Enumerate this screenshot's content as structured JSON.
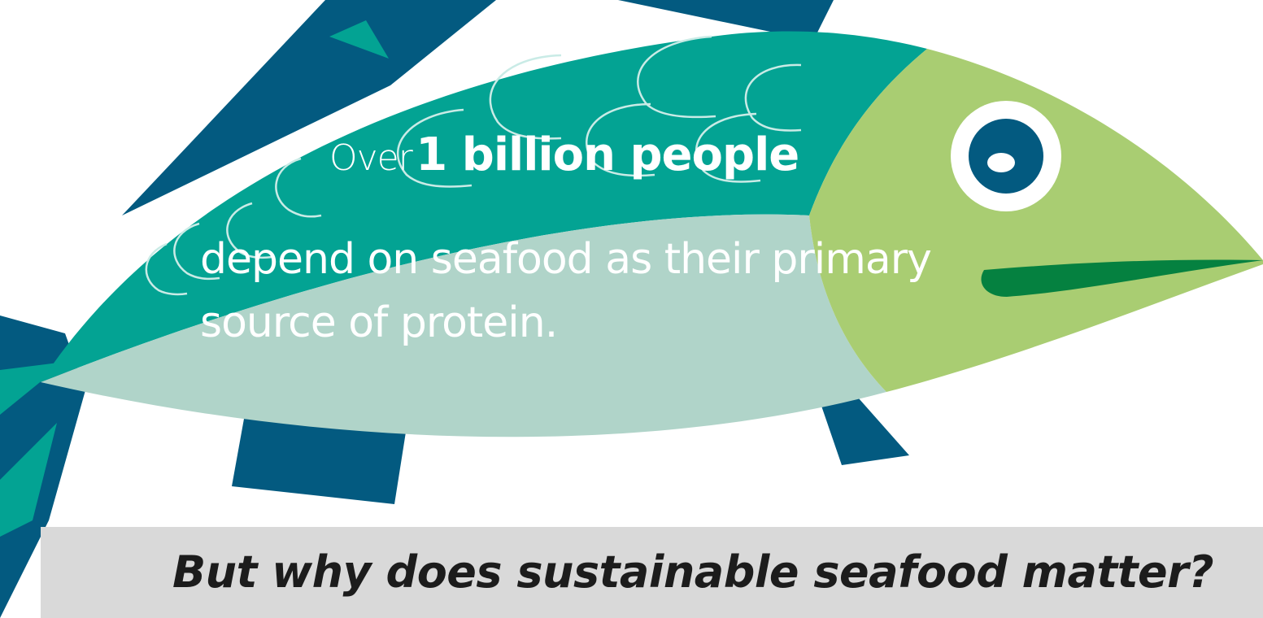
{
  "stat": {
    "prefix": "Over",
    "highlight": "1 billion people",
    "body": "depend on seafood as their primary source of protein."
  },
  "banner": {
    "question": "But why does sustainable seafood matter?"
  },
  "illustration": {
    "icon": "fish-icon",
    "colors": {
      "teal": "#03a393",
      "dark_blue": "#035a80",
      "light_belly": "#b0d4c9",
      "head_green": "#a9cd72",
      "mouth_green": "#058140",
      "banner_grey": "#d9d9d9"
    }
  }
}
